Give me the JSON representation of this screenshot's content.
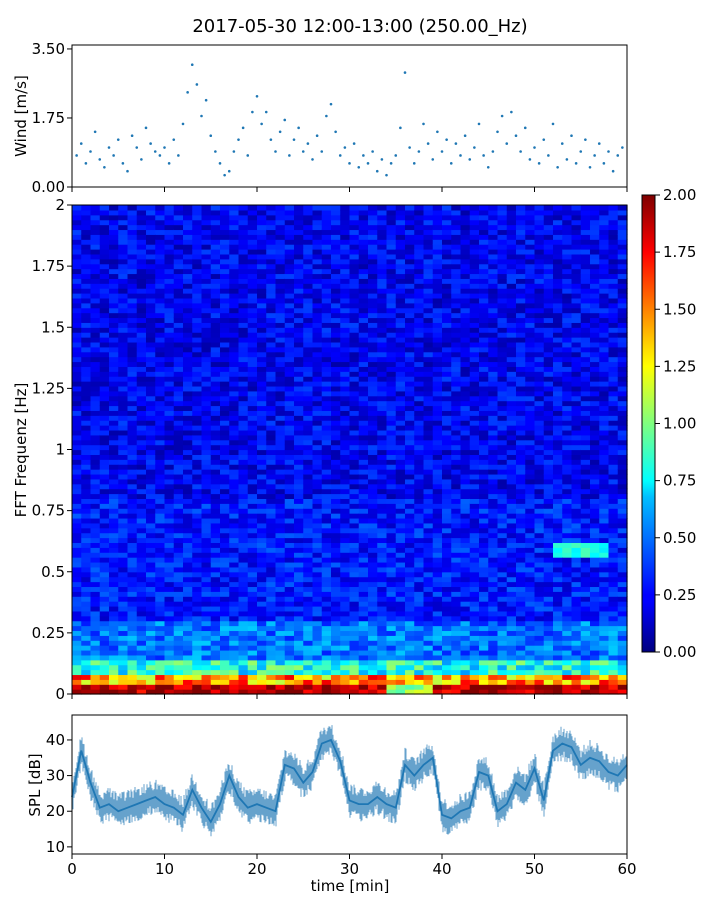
{
  "chart_data": {
    "title": "2017-05-30 12:00-13:00 (250.00_Hz)",
    "xlabel": "time [min]",
    "xlim": [
      0,
      60
    ],
    "xticks": [
      "0",
      "10",
      "20",
      "30",
      "40",
      "50",
      "60"
    ],
    "panels": [
      {
        "type": "scatter",
        "ylabel": "Wind [m/s]",
        "ylim": [
          0,
          3.6
        ],
        "yticks": [
          "0.00",
          "1.75",
          "3.50"
        ],
        "color": "#1f77b4",
        "points": [
          {
            "x": 0.5,
            "y": 0.8
          },
          {
            "x": 1.0,
            "y": 1.1
          },
          {
            "x": 1.5,
            "y": 0.6
          },
          {
            "x": 2.0,
            "y": 0.9
          },
          {
            "x": 2.5,
            "y": 1.4
          },
          {
            "x": 3.0,
            "y": 0.7
          },
          {
            "x": 3.5,
            "y": 0.5
          },
          {
            "x": 4.0,
            "y": 1.0
          },
          {
            "x": 4.5,
            "y": 0.8
          },
          {
            "x": 5.0,
            "y": 1.2
          },
          {
            "x": 5.5,
            "y": 0.6
          },
          {
            "x": 6.0,
            "y": 0.4
          },
          {
            "x": 6.5,
            "y": 1.3
          },
          {
            "x": 7.0,
            "y": 1.0
          },
          {
            "x": 7.5,
            "y": 0.7
          },
          {
            "x": 8.0,
            "y": 1.5
          },
          {
            "x": 8.5,
            "y": 1.1
          },
          {
            "x": 9.0,
            "y": 0.9
          },
          {
            "x": 9.5,
            "y": 0.8
          },
          {
            "x": 10.0,
            "y": 1.0
          },
          {
            "x": 10.5,
            "y": 0.6
          },
          {
            "x": 11.0,
            "y": 1.2
          },
          {
            "x": 11.5,
            "y": 0.8
          },
          {
            "x": 12.0,
            "y": 1.6
          },
          {
            "x": 12.5,
            "y": 2.4
          },
          {
            "x": 13.0,
            "y": 3.1
          },
          {
            "x": 13.5,
            "y": 2.6
          },
          {
            "x": 14.0,
            "y": 1.8
          },
          {
            "x": 14.5,
            "y": 2.2
          },
          {
            "x": 15.0,
            "y": 1.3
          },
          {
            "x": 15.5,
            "y": 0.9
          },
          {
            "x": 16.0,
            "y": 0.6
          },
          {
            "x": 16.5,
            "y": 0.3
          },
          {
            "x": 17.0,
            "y": 0.4
          },
          {
            "x": 17.5,
            "y": 0.9
          },
          {
            "x": 18.0,
            "y": 1.2
          },
          {
            "x": 18.5,
            "y": 1.5
          },
          {
            "x": 19.0,
            "y": 0.8
          },
          {
            "x": 19.5,
            "y": 1.9
          },
          {
            "x": 20.0,
            "y": 2.3
          },
          {
            "x": 20.5,
            "y": 1.6
          },
          {
            "x": 21.0,
            "y": 1.9
          },
          {
            "x": 21.5,
            "y": 1.2
          },
          {
            "x": 22.0,
            "y": 0.9
          },
          {
            "x": 22.5,
            "y": 1.4
          },
          {
            "x": 23.0,
            "y": 1.7
          },
          {
            "x": 23.5,
            "y": 0.8
          },
          {
            "x": 24.0,
            "y": 1.2
          },
          {
            "x": 24.5,
            "y": 1.5
          },
          {
            "x": 25.0,
            "y": 0.9
          },
          {
            "x": 25.5,
            "y": 1.1
          },
          {
            "x": 26.0,
            "y": 0.7
          },
          {
            "x": 26.5,
            "y": 1.3
          },
          {
            "x": 27.0,
            "y": 0.9
          },
          {
            "x": 27.5,
            "y": 1.8
          },
          {
            "x": 28.0,
            "y": 2.1
          },
          {
            "x": 28.5,
            "y": 1.4
          },
          {
            "x": 29.0,
            "y": 0.8
          },
          {
            "x": 29.5,
            "y": 1.0
          },
          {
            "x": 30.0,
            "y": 0.6
          },
          {
            "x": 30.5,
            "y": 1.1
          },
          {
            "x": 31.0,
            "y": 0.5
          },
          {
            "x": 31.5,
            "y": 0.8
          },
          {
            "x": 32.0,
            "y": 0.6
          },
          {
            "x": 32.5,
            "y": 0.9
          },
          {
            "x": 33.0,
            "y": 0.4
          },
          {
            "x": 33.5,
            "y": 0.7
          },
          {
            "x": 34.0,
            "y": 0.3
          },
          {
            "x": 34.5,
            "y": 0.6
          },
          {
            "x": 35.0,
            "y": 0.8
          },
          {
            "x": 35.5,
            "y": 1.5
          },
          {
            "x": 36.0,
            "y": 2.9
          },
          {
            "x": 36.5,
            "y": 1.0
          },
          {
            "x": 37.0,
            "y": 0.6
          },
          {
            "x": 37.5,
            "y": 0.9
          },
          {
            "x": 38.0,
            "y": 1.6
          },
          {
            "x": 38.5,
            "y": 1.1
          },
          {
            "x": 39.0,
            "y": 0.7
          },
          {
            "x": 39.5,
            "y": 1.4
          },
          {
            "x": 40.0,
            "y": 0.9
          },
          {
            "x": 40.5,
            "y": 1.2
          },
          {
            "x": 41.0,
            "y": 0.6
          },
          {
            "x": 41.5,
            "y": 1.1
          },
          {
            "x": 42.0,
            "y": 0.8
          },
          {
            "x": 42.5,
            "y": 1.3
          },
          {
            "x": 43.0,
            "y": 0.7
          },
          {
            "x": 43.5,
            "y": 1.0
          },
          {
            "x": 44.0,
            "y": 1.6
          },
          {
            "x": 44.5,
            "y": 0.8
          },
          {
            "x": 45.0,
            "y": 0.5
          },
          {
            "x": 45.5,
            "y": 0.9
          },
          {
            "x": 46.0,
            "y": 1.4
          },
          {
            "x": 46.5,
            "y": 1.8
          },
          {
            "x": 47.0,
            "y": 1.1
          },
          {
            "x": 47.5,
            "y": 1.9
          },
          {
            "x": 48.0,
            "y": 1.3
          },
          {
            "x": 48.5,
            "y": 0.9
          },
          {
            "x": 49.0,
            "y": 1.5
          },
          {
            "x": 49.5,
            "y": 0.7
          },
          {
            "x": 50.0,
            "y": 1.0
          },
          {
            "x": 50.5,
            "y": 0.6
          },
          {
            "x": 51.0,
            "y": 1.2
          },
          {
            "x": 51.5,
            "y": 0.8
          },
          {
            "x": 52.0,
            "y": 1.6
          },
          {
            "x": 52.5,
            "y": 0.5
          },
          {
            "x": 53.0,
            "y": 1.1
          },
          {
            "x": 53.5,
            "y": 0.7
          },
          {
            "x": 54.0,
            "y": 1.3
          },
          {
            "x": 54.5,
            "y": 0.6
          },
          {
            "x": 55.0,
            "y": 0.9
          },
          {
            "x": 55.5,
            "y": 1.2
          },
          {
            "x": 56.0,
            "y": 0.5
          },
          {
            "x": 56.5,
            "y": 0.8
          },
          {
            "x": 57.0,
            "y": 1.1
          },
          {
            "x": 57.5,
            "y": 0.6
          },
          {
            "x": 58.0,
            "y": 0.9
          },
          {
            "x": 58.5,
            "y": 0.4
          },
          {
            "x": 59.0,
            "y": 0.8
          },
          {
            "x": 59.5,
            "y": 1.0
          }
        ]
      },
      {
        "type": "heatmap",
        "ylabel": "FFT Frequenz [Hz]",
        "ylim": [
          0,
          2
        ],
        "yticks": [
          "0",
          "0.25",
          "0.5",
          "0.75",
          "1",
          "1.25",
          "1.5",
          "1.75",
          "2"
        ],
        "colormap": "jet",
        "colorbar": {
          "range": [
            0,
            2
          ],
          "ticks": [
            "0.00",
            "0.25",
            "0.50",
            "0.75",
            "1.00",
            "1.25",
            "1.50",
            "1.75",
            "2.00"
          ]
        }
      },
      {
        "type": "line",
        "ylabel": "SPL [dB]",
        "ylim": [
          8,
          47
        ],
        "yticks": [
          "10",
          "20",
          "30",
          "40"
        ],
        "color": "#1f77b4",
        "x": [
          0,
          1,
          2,
          3,
          4,
          5,
          6,
          7,
          8,
          9,
          10,
          11,
          12,
          13,
          14,
          15,
          16,
          17,
          18,
          19,
          20,
          21,
          22,
          23,
          24,
          25,
          26,
          27,
          28,
          29,
          30,
          31,
          32,
          33,
          34,
          35,
          36,
          37,
          38,
          39,
          40,
          41,
          42,
          43,
          44,
          45,
          46,
          47,
          48,
          49,
          50,
          51,
          52,
          53,
          54,
          55,
          56,
          57,
          58,
          59,
          60
        ],
        "y": [
          24,
          37,
          28,
          21,
          22,
          20,
          21,
          22,
          23,
          24,
          22,
          21,
          19,
          26,
          21,
          17,
          22,
          30,
          24,
          21,
          22,
          21,
          20,
          33,
          32,
          28,
          31,
          39,
          40,
          34,
          23,
          22,
          22,
          24,
          22,
          21,
          33,
          30,
          33,
          35,
          19,
          18,
          20,
          21,
          31,
          30,
          20,
          22,
          28,
          26,
          32,
          23,
          37,
          39,
          38,
          33,
          35,
          34,
          31,
          30,
          33
        ]
      }
    ]
  }
}
